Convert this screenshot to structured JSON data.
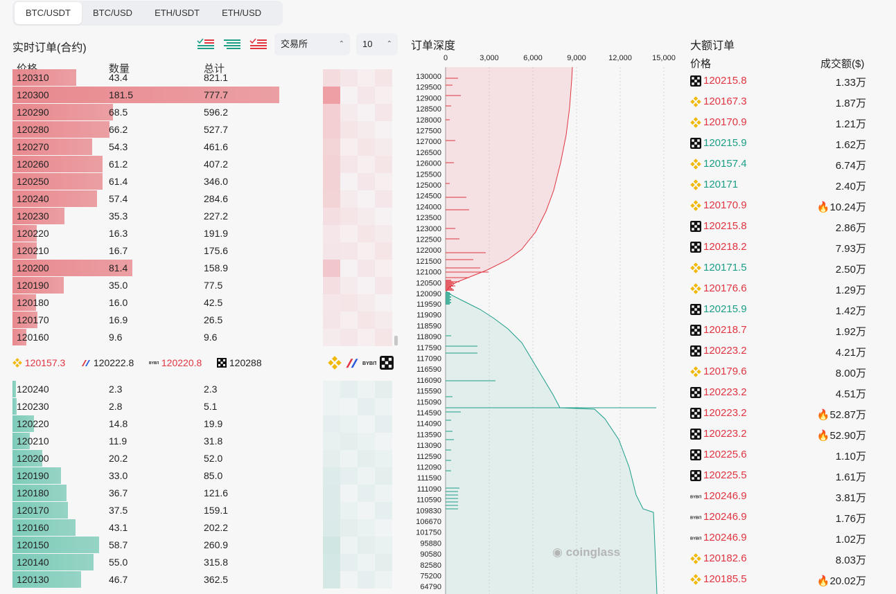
{
  "tabs": [
    "BTC/USDT",
    "BTC/USD",
    "ETH/USDT",
    "ETH/USD"
  ],
  "orderbook": {
    "title": "实时订单(合约)",
    "exchange_select": "交易所",
    "depth_select": "10",
    "columns": [
      "价格",
      "数量",
      "总计"
    ],
    "asks": [
      {
        "price": "120310",
        "qty": "43.4",
        "total": "821.1",
        "q": 43.4
      },
      {
        "price": "120300",
        "qty": "181.5",
        "total": "777.7",
        "q": 181.5
      },
      {
        "price": "120290",
        "qty": "68.5",
        "total": "596.2",
        "q": 68.5
      },
      {
        "price": "120280",
        "qty": "66.2",
        "total": "527.7",
        "q": 66.2
      },
      {
        "price": "120270",
        "qty": "54.3",
        "total": "461.6",
        "q": 54.3
      },
      {
        "price": "120260",
        "qty": "61.2",
        "total": "407.2",
        "q": 61.2
      },
      {
        "price": "120250",
        "qty": "61.4",
        "total": "346.0",
        "q": 61.4
      },
      {
        "price": "120240",
        "qty": "57.4",
        "total": "284.6",
        "q": 57.4
      },
      {
        "price": "120230",
        "qty": "35.3",
        "total": "227.2",
        "q": 35.3
      },
      {
        "price": "120220",
        "qty": "16.3",
        "total": "191.9",
        "q": 16.3
      },
      {
        "price": "120210",
        "qty": "16.7",
        "total": "175.6",
        "q": 16.7
      },
      {
        "price": "120200",
        "qty": "81.4",
        "total": "158.9",
        "q": 81.4
      },
      {
        "price": "120190",
        "qty": "35.0",
        "total": "77.5",
        "q": 35.0
      },
      {
        "price": "120180",
        "qty": "16.0",
        "total": "42.5",
        "q": 16.0
      },
      {
        "price": "120170",
        "qty": "16.9",
        "total": "26.5",
        "q": 16.9
      },
      {
        "price": "120160",
        "qty": "9.6",
        "total": "9.6",
        "q": 9.6
      }
    ],
    "exchange_prices": [
      {
        "exchange": "binance",
        "price": "120157.3",
        "color": "red"
      },
      {
        "exchange": "bitmex",
        "price": "120222.8",
        "color": "dark"
      },
      {
        "exchange": "bybit",
        "price": "120220.8",
        "color": "red"
      },
      {
        "exchange": "okx",
        "price": "120288",
        "color": "dark"
      }
    ],
    "bids": [
      {
        "price": "120240",
        "qty": "2.3",
        "total": "2.3",
        "q": 2.3
      },
      {
        "price": "120230",
        "qty": "2.8",
        "total": "5.1",
        "q": 2.8
      },
      {
        "price": "120220",
        "qty": "14.8",
        "total": "19.9",
        "q": 14.8
      },
      {
        "price": "120210",
        "qty": "11.9",
        "total": "31.8",
        "q": 11.9
      },
      {
        "price": "120200",
        "qty": "20.2",
        "total": "52.0",
        "q": 20.2
      },
      {
        "price": "120190",
        "qty": "33.0",
        "total": "85.0",
        "q": 33.0
      },
      {
        "price": "120180",
        "qty": "36.7",
        "total": "121.6",
        "q": 36.7
      },
      {
        "price": "120170",
        "qty": "37.5",
        "total": "159.1",
        "q": 37.5
      },
      {
        "price": "120160",
        "qty": "43.1",
        "total": "202.2",
        "q": 43.1
      },
      {
        "price": "120150",
        "qty": "58.7",
        "total": "260.9",
        "q": 58.7
      },
      {
        "price": "120140",
        "qty": "55.0",
        "total": "315.8",
        "q": 55.0
      },
      {
        "price": "120130",
        "qty": "46.7",
        "total": "362.5",
        "q": 46.7
      }
    ]
  },
  "depth": {
    "title": "订单深度",
    "x_ticks": [
      "0",
      "3,000",
      "6,000",
      "9,000",
      "12,000",
      "15,000"
    ],
    "ask_ticks": [
      "130000",
      "129500",
      "129000",
      "128500",
      "128000",
      "127500",
      "127000",
      "126500",
      "126000",
      "125500",
      "125000",
      "124500",
      "124000",
      "123500",
      "123000",
      "122500",
      "122000",
      "121500",
      "121000",
      "120500",
      "120090"
    ],
    "bid_ticks": [
      "119590",
      "119090",
      "118590",
      "118090",
      "117590",
      "117090",
      "116590",
      "116090",
      "115590",
      "115090",
      "114590",
      "114090",
      "113590",
      "113090",
      "112590",
      "112090",
      "111590",
      "111090",
      "110590",
      "109830",
      "106670",
      "101750",
      "95880",
      "90580",
      "82580",
      "75200",
      "64790"
    ],
    "watermark": "coinglass"
  },
  "big_orders": {
    "title": "大额订单",
    "col_price": "价格",
    "col_amount": "成交额($)",
    "rows": [
      {
        "ex": "okx",
        "price": "120215.8",
        "side": "red",
        "amount": "1.33万",
        "fire": false
      },
      {
        "ex": "binance",
        "price": "120167.3",
        "side": "red",
        "amount": "1.87万",
        "fire": false
      },
      {
        "ex": "binance",
        "price": "120170.9",
        "side": "red",
        "amount": "1.21万",
        "fire": false
      },
      {
        "ex": "okx",
        "price": "120215.9",
        "side": "green",
        "amount": "1.62万",
        "fire": false
      },
      {
        "ex": "binance",
        "price": "120157.4",
        "side": "green",
        "amount": "6.74万",
        "fire": false
      },
      {
        "ex": "binance",
        "price": "120171",
        "side": "green",
        "amount": "2.40万",
        "fire": false
      },
      {
        "ex": "binance",
        "price": "120170.9",
        "side": "red",
        "amount": "10.24万",
        "fire": true
      },
      {
        "ex": "okx",
        "price": "120215.8",
        "side": "red",
        "amount": "2.86万",
        "fire": false
      },
      {
        "ex": "okx",
        "price": "120218.2",
        "side": "red",
        "amount": "7.93万",
        "fire": false
      },
      {
        "ex": "binance",
        "price": "120171.5",
        "side": "green",
        "amount": "2.50万",
        "fire": false
      },
      {
        "ex": "binance",
        "price": "120176.6",
        "side": "red",
        "amount": "1.29万",
        "fire": false
      },
      {
        "ex": "okx",
        "price": "120215.9",
        "side": "green",
        "amount": "1.42万",
        "fire": false
      },
      {
        "ex": "okx",
        "price": "120218.7",
        "side": "red",
        "amount": "1.92万",
        "fire": false
      },
      {
        "ex": "okx",
        "price": "120223.2",
        "side": "red",
        "amount": "4.21万",
        "fire": false
      },
      {
        "ex": "binance",
        "price": "120179.6",
        "side": "red",
        "amount": "8.00万",
        "fire": false
      },
      {
        "ex": "okx",
        "price": "120223.2",
        "side": "red",
        "amount": "4.51万",
        "fire": false
      },
      {
        "ex": "okx",
        "price": "120223.2",
        "side": "red",
        "amount": "52.87万",
        "fire": true
      },
      {
        "ex": "okx",
        "price": "120223.2",
        "side": "red",
        "amount": "52.90万",
        "fire": true
      },
      {
        "ex": "okx",
        "price": "120225.6",
        "side": "red",
        "amount": "1.10万",
        "fire": false
      },
      {
        "ex": "okx",
        "price": "120225.5",
        "side": "red",
        "amount": "1.61万",
        "fire": false
      },
      {
        "ex": "bybit",
        "price": "120246.9",
        "side": "red",
        "amount": "3.81万",
        "fire": false
      },
      {
        "ex": "bybit",
        "price": "120246.9",
        "side": "red",
        "amount": "1.76万",
        "fire": false
      },
      {
        "ex": "bybit",
        "price": "120246.9",
        "side": "red",
        "amount": "1.02万",
        "fire": false
      },
      {
        "ex": "binance",
        "price": "120182.6",
        "side": "red",
        "amount": "8.03万",
        "fire": false
      },
      {
        "ex": "binance",
        "price": "120185.5",
        "side": "red",
        "amount": "20.02万",
        "fire": true
      }
    ]
  },
  "colors": {
    "ask": "#e0343f",
    "bid": "#1a9e86",
    "ask_bar": "#e8898e",
    "bid_bar": "#7dcbb9"
  }
}
